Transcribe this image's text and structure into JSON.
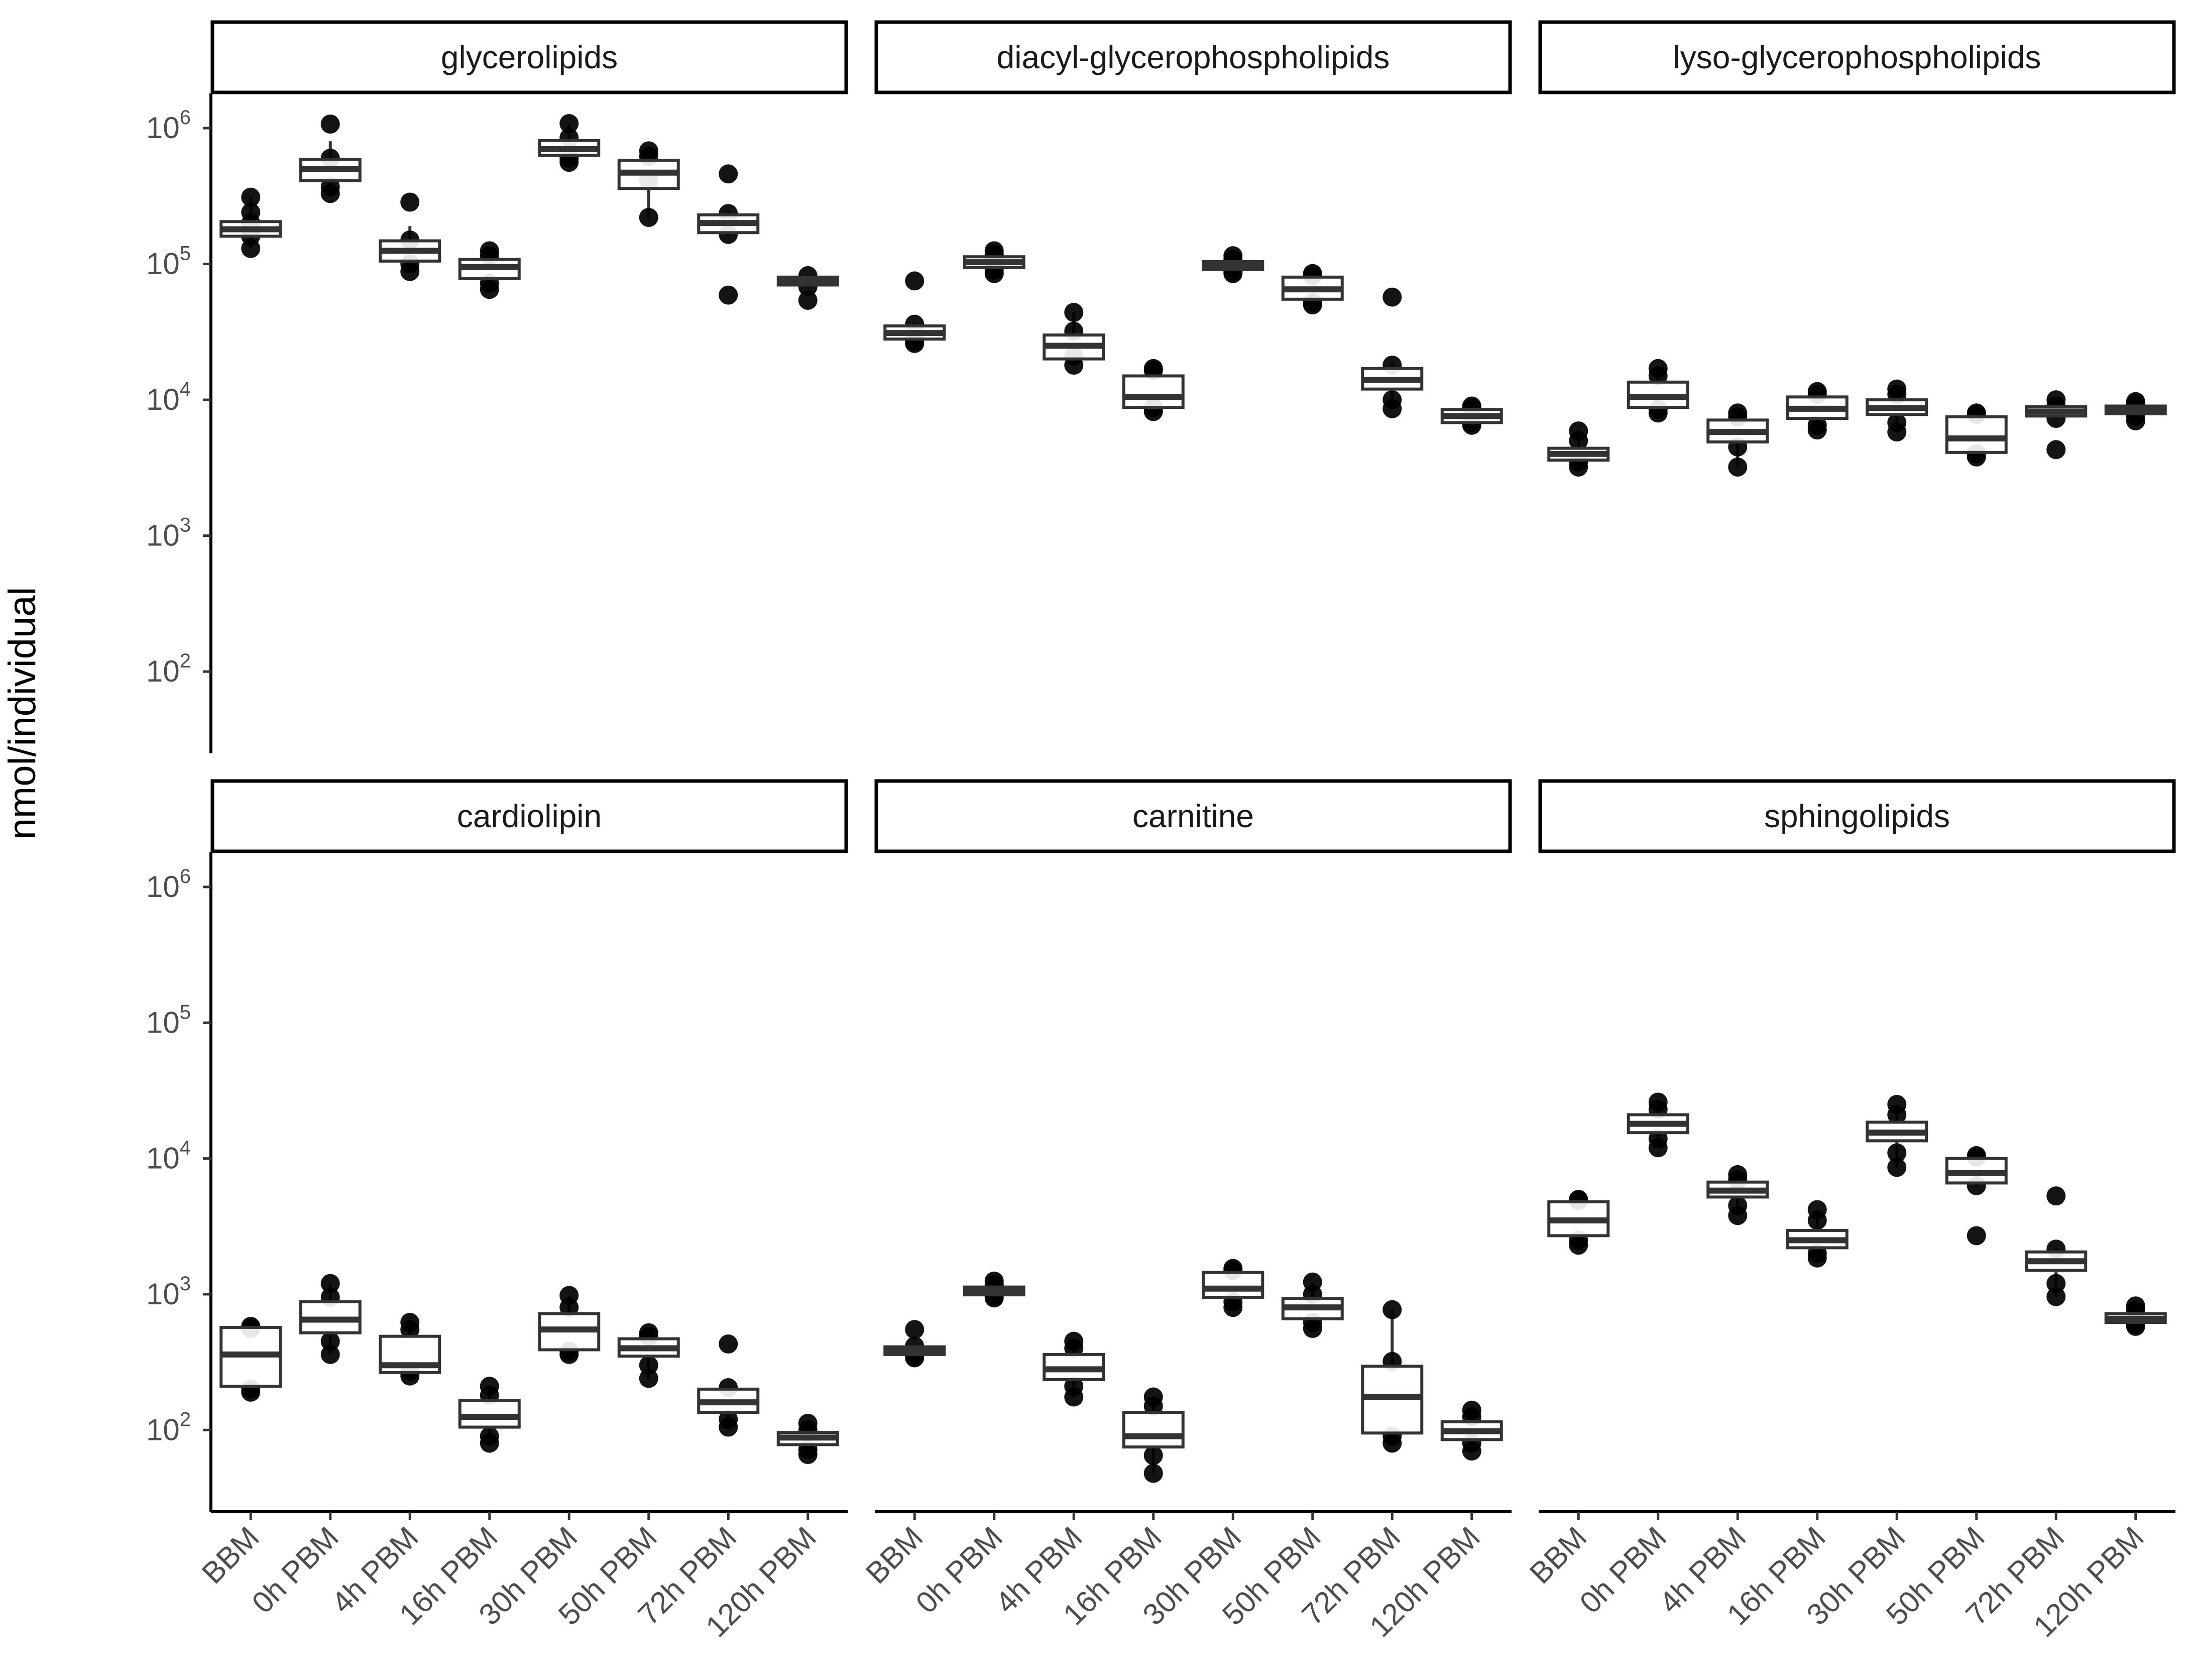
{
  "chart_data": {
    "type": "boxplot-facets",
    "ylabel": "nmol/individual",
    "xlabel": "",
    "yscale": "log10",
    "ylim": [
      25,
      1800000
    ],
    "yticks": [
      {
        "value": 100,
        "base": "10",
        "exp": "2"
      },
      {
        "value": 1000,
        "base": "10",
        "exp": "3"
      },
      {
        "value": 10000,
        "base": "10",
        "exp": "4"
      },
      {
        "value": 100000,
        "base": "10",
        "exp": "5"
      },
      {
        "value": 1000000,
        "base": "10",
        "exp": "6"
      }
    ],
    "categories": [
      "BBM",
      "0h PBM",
      "4h PBM",
      "16h PBM",
      "30h PBM",
      "50h PBM",
      "72h PBM",
      "120h PBM"
    ],
    "legend": "none",
    "grid": false,
    "facets": [
      {
        "title": "glycerolipids",
        "row": 0,
        "col": 0,
        "boxes": [
          {
            "q1": 160000,
            "med": 180000,
            "q3": 205000,
            "lo": 130000,
            "hi": 310000,
            "pts": [
              130000,
              160000,
              200000,
              240000,
              310000
            ]
          },
          {
            "q1": 410000,
            "med": 500000,
            "q3": 590000,
            "lo": 330000,
            "hi": 800000,
            "pts": [
              330000,
              370000,
              600000,
              1070000
            ]
          },
          {
            "q1": 105000,
            "med": 125000,
            "q3": 148000,
            "lo": 88000,
            "hi": 190000,
            "pts": [
              88000,
              100000,
              150000,
              285000
            ]
          },
          {
            "q1": 78000,
            "med": 95000,
            "q3": 108000,
            "lo": 65000,
            "hi": 125000,
            "pts": [
              65000,
              72000,
              115000,
              125000
            ]
          },
          {
            "q1": 630000,
            "med": 700000,
            "q3": 810000,
            "lo": 560000,
            "hi": 1080000,
            "pts": [
              560000,
              600000,
              850000,
              1080000
            ]
          },
          {
            "q1": 360000,
            "med": 470000,
            "q3": 580000,
            "lo": 220000,
            "hi": 680000,
            "pts": [
              220000,
              410000,
              620000,
              680000
            ]
          },
          {
            "q1": 170000,
            "med": 200000,
            "q3": 230000,
            "lo": 160000,
            "hi": 245000,
            "pts": [
              59000,
              165000,
              235000,
              460000
            ]
          },
          {
            "q1": 70000,
            "med": 75000,
            "q3": 80000,
            "lo": 66000,
            "hi": 84000,
            "pts": [
              54000,
              68000,
              82000
            ]
          }
        ]
      },
      {
        "title": "diacyl-glycerophospholipids",
        "row": 0,
        "col": 1,
        "boxes": [
          {
            "q1": 28000,
            "med": 31000,
            "q3": 35000,
            "lo": 26000,
            "hi": 37000,
            "pts": [
              26000,
              27000,
              36000,
              75000
            ]
          },
          {
            "q1": 94000,
            "med": 103000,
            "q3": 113000,
            "lo": 85000,
            "hi": 125000,
            "pts": [
              85000,
              90000,
              118000,
              125000
            ]
          },
          {
            "q1": 20000,
            "med": 25000,
            "q3": 30000,
            "lo": 18000,
            "hi": 44000,
            "pts": [
              18000,
              21000,
              32000,
              44000
            ]
          },
          {
            "q1": 8800,
            "med": 10500,
            "q3": 15000,
            "lo": 8200,
            "hi": 17000,
            "pts": [
              8200,
              8800,
              16500,
              17000
            ]
          },
          {
            "q1": 91000,
            "med": 97000,
            "q3": 104000,
            "lo": 85000,
            "hi": 115000,
            "pts": [
              85000,
              88000,
              108000,
              115000
            ]
          },
          {
            "q1": 55000,
            "med": 65000,
            "q3": 80000,
            "lo": 50000,
            "hi": 85000,
            "pts": [
              50000,
              52000,
              82000,
              85000
            ]
          },
          {
            "q1": 12000,
            "med": 14000,
            "q3": 17000,
            "lo": 8600,
            "hi": 19000,
            "pts": [
              8600,
              10000,
              18000,
              57000
            ]
          },
          {
            "q1": 6800,
            "med": 7600,
            "q3": 8500,
            "lo": 6500,
            "hi": 9000,
            "pts": [
              6500,
              6800,
              8700,
              9000
            ]
          }
        ]
      },
      {
        "title": "lyso-glycerophospholipids",
        "row": 0,
        "col": 2,
        "boxes": [
          {
            "q1": 3600,
            "med": 4000,
            "q3": 4400,
            "lo": 3200,
            "hi": 5900,
            "pts": [
              3200,
              3500,
              5000,
              5900
            ]
          },
          {
            "q1": 8800,
            "med": 10500,
            "q3": 13500,
            "lo": 8000,
            "hi": 17000,
            "pts": [
              8000,
              8500,
              15000,
              17000
            ]
          },
          {
            "q1": 4900,
            "med": 5800,
            "q3": 7100,
            "lo": 3200,
            "hi": 8000,
            "pts": [
              3200,
              4500,
              7500,
              8000
            ]
          },
          {
            "q1": 7300,
            "med": 8600,
            "q3": 10500,
            "lo": 6000,
            "hi": 11500,
            "pts": [
              6000,
              6500,
              11000,
              11500
            ]
          },
          {
            "q1": 7800,
            "med": 8700,
            "q3": 10000,
            "lo": 5800,
            "hi": 12000,
            "pts": [
              5800,
              6800,
              11000,
              12000
            ]
          },
          {
            "q1": 4100,
            "med": 5200,
            "q3": 7500,
            "lo": 3800,
            "hi": 8000,
            "pts": [
              3800,
              4000,
              7800,
              8000
            ]
          },
          {
            "q1": 7600,
            "med": 8200,
            "q3": 8900,
            "lo": 7200,
            "hi": 10000,
            "pts": [
              4300,
              7300,
              9000,
              10000
            ]
          },
          {
            "q1": 7900,
            "med": 8500,
            "q3": 9000,
            "lo": 7000,
            "hi": 9700,
            "pts": [
              7000,
              7600,
              9300,
              9700
            ]
          }
        ]
      },
      {
        "title": "cardiolipin",
        "row": 1,
        "col": 0,
        "boxes": [
          {
            "q1": 210,
            "med": 360,
            "q3": 570,
            "lo": 190,
            "hi": 580,
            "pts": [
              190,
              200,
              560,
              580
            ]
          },
          {
            "q1": 520,
            "med": 650,
            "q3": 880,
            "lo": 360,
            "hi": 1200,
            "pts": [
              360,
              450,
              950,
              1200
            ]
          },
          {
            "q1": 265,
            "med": 300,
            "q3": 490,
            "lo": 250,
            "hi": 620,
            "pts": [
              250,
              270,
              550,
              620
            ]
          },
          {
            "q1": 105,
            "med": 125,
            "q3": 165,
            "lo": 80,
            "hi": 210,
            "pts": [
              80,
              90,
              180,
              210
            ]
          },
          {
            "q1": 390,
            "med": 550,
            "q3": 720,
            "lo": 360,
            "hi": 980,
            "pts": [
              360,
              380,
              800,
              980
            ]
          },
          {
            "q1": 350,
            "med": 400,
            "q3": 470,
            "lo": 240,
            "hi": 520,
            "pts": [
              240,
              300,
              490,
              520
            ]
          },
          {
            "q1": 135,
            "med": 160,
            "q3": 200,
            "lo": 105,
            "hi": 210,
            "pts": [
              105,
              120,
              205,
              430
            ]
          },
          {
            "q1": 78,
            "med": 88,
            "q3": 96,
            "lo": 66,
            "hi": 112,
            "pts": [
              66,
              72,
              100,
              112
            ]
          }
        ]
      },
      {
        "title": "carnitine",
        "row": 1,
        "col": 1,
        "boxes": [
          {
            "q1": 360,
            "med": 385,
            "q3": 410,
            "lo": 340,
            "hi": 420,
            "pts": [
              340,
              350,
              415,
              550
            ]
          },
          {
            "q1": 990,
            "med": 1050,
            "q3": 1130,
            "lo": 940,
            "hi": 1250,
            "pts": [
              940,
              970,
              1180,
              1250
            ]
          },
          {
            "q1": 235,
            "med": 280,
            "q3": 360,
            "lo": 175,
            "hi": 450,
            "pts": [
              175,
              210,
              400,
              450
            ]
          },
          {
            "q1": 75,
            "med": 90,
            "q3": 135,
            "lo": 48,
            "hi": 175,
            "pts": [
              48,
              65,
              150,
              175
            ]
          },
          {
            "q1": 950,
            "med": 1100,
            "q3": 1450,
            "lo": 800,
            "hi": 1550,
            "pts": [
              800,
              880,
              1500,
              1550
            ]
          },
          {
            "q1": 660,
            "med": 800,
            "q3": 930,
            "lo": 560,
            "hi": 1230,
            "pts": [
              560,
              620,
              1000,
              1230
            ]
          },
          {
            "q1": 95,
            "med": 175,
            "q3": 295,
            "lo": 80,
            "hi": 770,
            "pts": [
              80,
              90,
              320,
              770
            ]
          },
          {
            "q1": 85,
            "med": 98,
            "q3": 115,
            "lo": 70,
            "hi": 140,
            "pts": [
              70,
              80,
              125,
              140
            ]
          }
        ]
      },
      {
        "title": "sphingolipids",
        "row": 1,
        "col": 2,
        "boxes": [
          {
            "q1": 2700,
            "med": 3500,
            "q3": 4800,
            "lo": 2300,
            "hi": 5000,
            "pts": [
              2300,
              2500,
              4900,
              5000
            ]
          },
          {
            "q1": 15500,
            "med": 18000,
            "q3": 21000,
            "lo": 12000,
            "hi": 26000,
            "pts": [
              12000,
              14000,
              23000,
              26000
            ]
          },
          {
            "q1": 5200,
            "med": 5800,
            "q3": 6700,
            "lo": 3800,
            "hi": 7600,
            "pts": [
              3800,
              4500,
              7000,
              7600
            ]
          },
          {
            "q1": 2200,
            "med": 2500,
            "q3": 2950,
            "lo": 1850,
            "hi": 4200,
            "pts": [
              1850,
              2000,
              3500,
              4200
            ]
          },
          {
            "q1": 13500,
            "med": 15500,
            "q3": 18500,
            "lo": 8600,
            "hi": 25000,
            "pts": [
              8600,
              11000,
              21000,
              25000
            ]
          },
          {
            "q1": 6600,
            "med": 7800,
            "q3": 10000,
            "lo": 6200,
            "hi": 10500,
            "pts": [
              2700,
              6300,
              10200,
              10500
            ]
          },
          {
            "q1": 1500,
            "med": 1750,
            "q3": 2050,
            "lo": 960,
            "hi": 2200,
            "pts": [
              960,
              1200,
              2150,
              5300
            ]
          },
          {
            "q1": 620,
            "med": 660,
            "q3": 720,
            "lo": 580,
            "hi": 820,
            "pts": [
              580,
              600,
              760,
              820
            ]
          }
        ]
      }
    ]
  }
}
